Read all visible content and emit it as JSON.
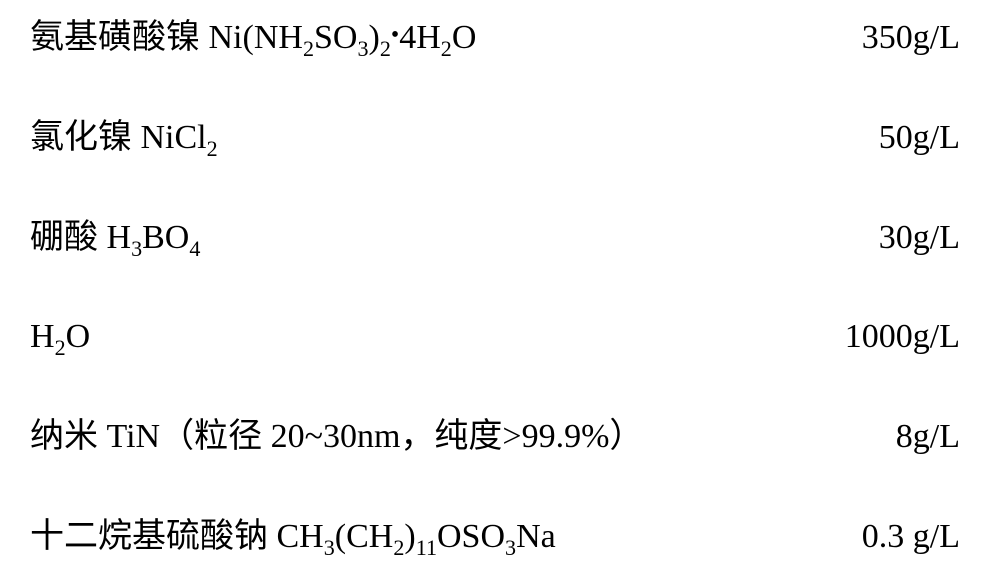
{
  "rows": [
    {
      "name_cn": "氨基磺酸镍",
      "formula_parts": [
        {
          "t": "txt",
          "v": " Ni(NH"
        },
        {
          "t": "sub",
          "v": "2"
        },
        {
          "t": "txt",
          "v": "SO"
        },
        {
          "t": "sub",
          "v": "3"
        },
        {
          "t": "txt",
          "v": ")"
        },
        {
          "t": "sub",
          "v": "2"
        },
        {
          "t": "dot",
          "v": "•"
        },
        {
          "t": "txt",
          "v": "4H"
        },
        {
          "t": "sub",
          "v": "2"
        },
        {
          "t": "txt",
          "v": "O"
        }
      ],
      "value": "350g/L"
    },
    {
      "name_cn": "氯化镍",
      "formula_parts": [
        {
          "t": "txt",
          "v": " NiCl"
        },
        {
          "t": "sub",
          "v": "2"
        }
      ],
      "value": "50g/L"
    },
    {
      "name_cn": "硼酸",
      "formula_parts": [
        {
          "t": "txt",
          "v": " H"
        },
        {
          "t": "sub",
          "v": "3"
        },
        {
          "t": "txt",
          "v": "BO"
        },
        {
          "t": "sub",
          "v": "4"
        }
      ],
      "value": "30g/L"
    },
    {
      "name_cn": "",
      "formula_parts": [
        {
          "t": "txt",
          "v": "H"
        },
        {
          "t": "sub",
          "v": "2"
        },
        {
          "t": "txt",
          "v": "O"
        }
      ],
      "value": "1000g/L"
    },
    {
      "name_cn": "纳米 TiN（粒径 20~30nm，纯度>99.9%）",
      "formula_parts": [],
      "value": "8g/L"
    },
    {
      "name_cn": "十二烷基硫酸钠",
      "formula_parts": [
        {
          "t": "txt",
          "v": " CH"
        },
        {
          "t": "sub",
          "v": "3"
        },
        {
          "t": "txt",
          "v": "(CH"
        },
        {
          "t": "sub",
          "v": "2"
        },
        {
          "t": "txt",
          "v": ")"
        },
        {
          "t": "sub",
          "v": "11"
        },
        {
          "t": "txt",
          "v": "OSO"
        },
        {
          "t": "sub",
          "v": "3"
        },
        {
          "t": "txt",
          "v": "Na"
        }
      ],
      "value": "0.3 g/L"
    }
  ]
}
